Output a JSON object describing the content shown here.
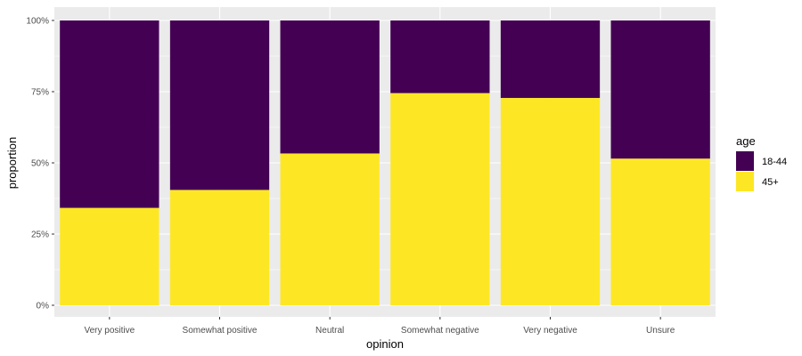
{
  "chart_data": {
    "type": "bar",
    "stacked": true,
    "normalized": true,
    "categories": [
      "Very positive",
      "Somewhat positive",
      "Neutral",
      "Somewhat negative",
      "Very negative",
      "Unsure"
    ],
    "series": [
      {
        "name": "18-44",
        "color": "#440154",
        "values": [
          0.658,
          0.595,
          0.467,
          0.255,
          0.272,
          0.485
        ]
      },
      {
        "name": "45+",
        "color": "#FDE725",
        "values": [
          0.342,
          0.405,
          0.533,
          0.745,
          0.728,
          0.515
        ]
      }
    ],
    "xlabel": "opinion",
    "ylabel": "proportion",
    "ylim": [
      0,
      1
    ],
    "yticks": [
      "0%",
      "25%",
      "50%",
      "75%",
      "100%"
    ],
    "grid": true,
    "panel_background": "#EBEBEB",
    "legend": {
      "title": "age",
      "placement": "right"
    }
  }
}
